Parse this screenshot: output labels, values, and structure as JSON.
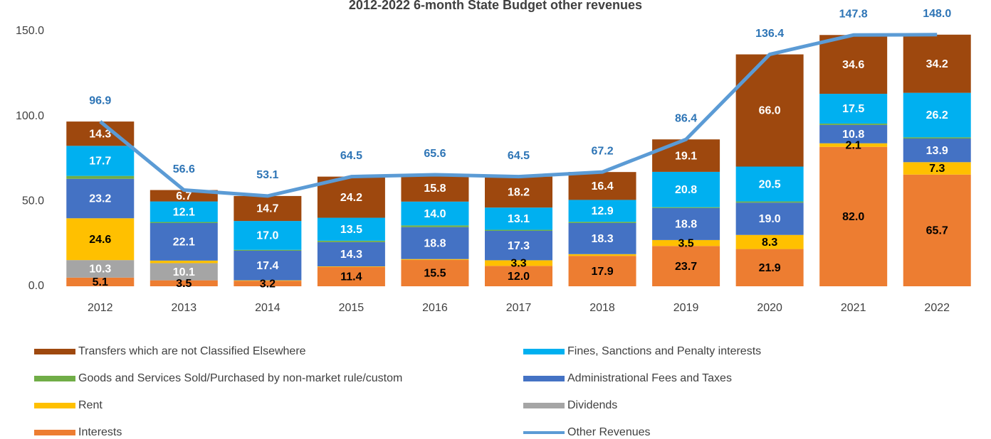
{
  "chart_data": {
    "type": "stacked_bar_line",
    "title": "2012-2022 6-month State Budget other revenues",
    "categories": [
      "2012",
      "2013",
      "2014",
      "2015",
      "2016",
      "2017",
      "2018",
      "2019",
      "2020",
      "2021",
      "2022"
    ],
    "ylim": [
      0,
      150
    ],
    "yticks": [
      {
        "value": 0,
        "label": "0.0"
      },
      {
        "value": 50,
        "label": "50.0"
      },
      {
        "value": 100,
        "label": "100.0"
      },
      {
        "value": 150,
        "label": "150.0"
      }
    ],
    "series": [
      {
        "name": "Interests",
        "color": "#ed7d31",
        "label_color": "#000000",
        "values": [
          5.1,
          3.5,
          3.2,
          11.4,
          15.5,
          12.0,
          17.9,
          23.7,
          21.9,
          82.0,
          65.7
        ],
        "value_labels": [
          "5.1",
          "3.5",
          "3.2",
          "11.4",
          "15.5",
          "12.0",
          "17.9",
          "23.7",
          "21.9",
          "82.0",
          "65.7"
        ]
      },
      {
        "name": "Dividends",
        "color": "#a5a5a5",
        "label_color": "#ffffff",
        "values": [
          10.3,
          10.1,
          0,
          0,
          0,
          0,
          0,
          0,
          0,
          0,
          0
        ],
        "value_labels": [
          "10.3",
          "10.1",
          null,
          null,
          null,
          null,
          null,
          null,
          null,
          null,
          null
        ]
      },
      {
        "name": "Rent",
        "color": "#ffc000",
        "label_color": "#000000",
        "values": [
          24.6,
          1.5,
          0.3,
          0.3,
          0.5,
          3.3,
          1.0,
          3.5,
          8.3,
          2.1,
          7.3
        ],
        "value_labels": [
          "24.6",
          null,
          null,
          null,
          null,
          "3.3",
          null,
          "3.5",
          "8.3",
          "2.1",
          "7.3"
        ]
      },
      {
        "name": "Administrational Fees and Taxes",
        "color": "#4472c4",
        "label_color": "#ffffff",
        "values": [
          23.2,
          22.1,
          17.4,
          14.3,
          18.8,
          17.3,
          18.3,
          18.8,
          19.0,
          10.8,
          13.9
        ],
        "value_labels": [
          "23.2",
          "22.1",
          "17.4",
          "14.3",
          "18.8",
          "17.3",
          "18.3",
          "18.8",
          "19.0",
          "10.8",
          "13.9"
        ]
      },
      {
        "name": "Goods and Services Sold/Purchased by non-market rule/custom",
        "color": "#70ad47",
        "label_color": "#ffffff",
        "values": [
          1.7,
          0.6,
          0.5,
          0.8,
          1.0,
          0.6,
          0.7,
          0.5,
          0.7,
          0.8,
          0.7
        ],
        "value_labels": [
          null,
          null,
          null,
          null,
          null,
          null,
          null,
          null,
          null,
          null,
          null
        ]
      },
      {
        "name": "Fines, Sanctions and Penalty interests",
        "color": "#00b0f0",
        "label_color": "#ffffff",
        "values": [
          17.7,
          12.1,
          17.0,
          13.5,
          14.0,
          13.1,
          12.9,
          20.8,
          20.5,
          17.5,
          26.2
        ],
        "value_labels": [
          "17.7",
          "12.1",
          "17.0",
          "13.5",
          "14.0",
          "13.1",
          "12.9",
          "20.8",
          "20.5",
          "17.5",
          "26.2"
        ]
      },
      {
        "name": "Transfers which are not Classified Elsewhere",
        "color": "#9e480e",
        "label_color": "#ffffff",
        "values": [
          14.3,
          6.7,
          14.7,
          24.2,
          15.8,
          18.2,
          16.4,
          19.1,
          66.0,
          34.6,
          34.2
        ],
        "value_labels": [
          "14.3",
          "6.7",
          "14.7",
          "24.2",
          "15.8",
          "18.2",
          "16.4",
          "19.1",
          "66.0",
          "34.6",
          "34.2"
        ]
      }
    ],
    "line": {
      "name": "Other Revenues",
      "color": "#5b9bd5",
      "label_color": "#2e75b6",
      "values": [
        96.9,
        56.6,
        53.1,
        64.5,
        65.6,
        64.5,
        67.2,
        86.4,
        136.4,
        147.8,
        148.0
      ],
      "value_labels": [
        "96.9",
        "56.6",
        "53.1",
        "64.5",
        "65.6",
        "64.5",
        "67.2",
        "86.4",
        "136.4",
        "147.8",
        "148.0"
      ]
    }
  }
}
